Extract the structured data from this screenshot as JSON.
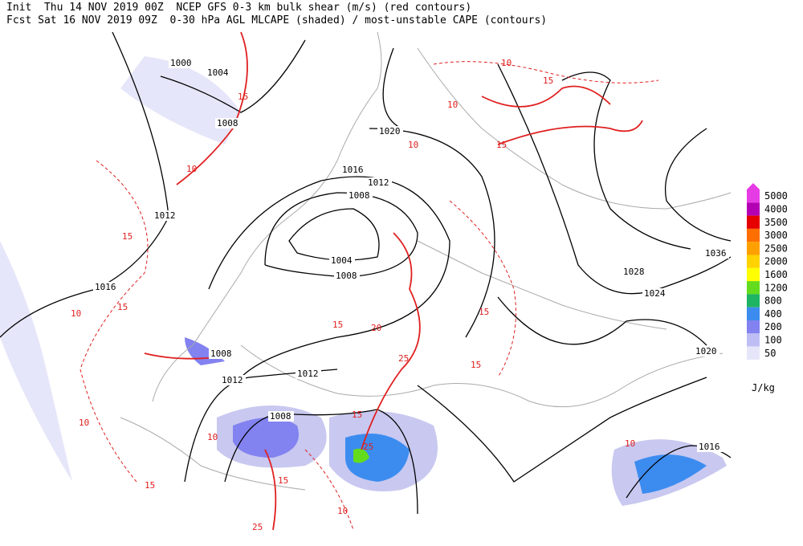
{
  "header": {
    "line1": "Init  Thu 14 NOV 2019 00Z  NCEP GFS 0-3 km bulk shear (m/s) (red contours)",
    "line2": "Fcst Sat 16 NOV 2019 09Z  0-30 hPa AGL MLCAPE (shaded) / most-unstable CAPE (contours)"
  },
  "pressure_labels": [
    "1000",
    "1004",
    "1008",
    "1012",
    "1016",
    "1020",
    "1016",
    "1012",
    "1008",
    "1004",
    "1008",
    "1036",
    "1028",
    "1024",
    "1020",
    "1008",
    "1012",
    "1012",
    "1008",
    "1016"
  ],
  "shear_labels": [
    "15",
    "10",
    "10",
    "15",
    "10",
    "15",
    "10",
    "15",
    "15",
    "10",
    "10",
    "15",
    "20",
    "25",
    "15",
    "15",
    "15",
    "25",
    "10",
    "15",
    "10",
    "15",
    "25",
    "10"
  ],
  "legend": {
    "unit": "J/kg",
    "levels": [
      {
        "value": 5000,
        "color": "#e63ce6"
      },
      {
        "value": 4000,
        "color": "#b400b4"
      },
      {
        "value": 3500,
        "color": "#e60000"
      },
      {
        "value": 3000,
        "color": "#ff6e00"
      },
      {
        "value": 2500,
        "color": "#ffa000"
      },
      {
        "value": 2000,
        "color": "#ffd200"
      },
      {
        "value": 1600,
        "color": "#ffff00"
      },
      {
        "value": 1200,
        "color": "#64dc1e"
      },
      {
        "value": 800,
        "color": "#1eb464"
      },
      {
        "value": 400,
        "color": "#3c8cf0"
      },
      {
        "value": 200,
        "color": "#8282f0"
      },
      {
        "value": 100,
        "color": "#bebef5"
      },
      {
        "value": 50,
        "color": "#e6e6fa"
      }
    ]
  }
}
